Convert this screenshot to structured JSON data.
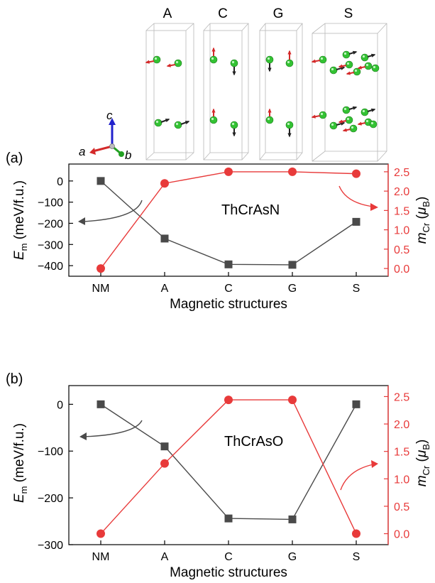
{
  "header": {
    "structure_labels": [
      "A",
      "C",
      "G",
      "S"
    ],
    "axis_labels": {
      "a": "a",
      "b": "b",
      "c": "c"
    }
  },
  "colors": {
    "energy_series": "#4a4a4a",
    "moment_series": "#e83a3a",
    "atom": "#33c233",
    "spin_up": "#d42a2a",
    "spin_dark": "#222222",
    "axis_a": "#d42a2a",
    "axis_b": "#22a022",
    "axis_c": "#2222cc"
  },
  "chart_data": [
    {
      "type": "line",
      "panel_label": "(a)",
      "annotation": "ThCrAsN",
      "categories": [
        "NM",
        "A",
        "C",
        "G",
        "S"
      ],
      "xlabel": "Magnetic structures",
      "ylabel_left": {
        "main": "E",
        "sub": "m",
        "rest": " (meV/f.u.)"
      },
      "ylabel_right": {
        "main": "m",
        "sub": "Cr",
        "rest": " (",
        "mu": "μ",
        "mu_sub": "B",
        "close": ")"
      },
      "ylim_left": [
        -450,
        80
      ],
      "yticks_left": [
        0,
        -100,
        -200,
        -300,
        -400
      ],
      "ytick_labels_left": [
        "0",
        "−100",
        "−200",
        "−300",
        "−400"
      ],
      "ylim_right": [
        -0.2,
        2.7
      ],
      "yticks_right": [
        0.0,
        0.5,
        1.0,
        1.5,
        2.0,
        2.5
      ],
      "ytick_labels_right": [
        "0.0",
        "0.5",
        "1.0",
        "1.5",
        "2.0",
        "2.5"
      ],
      "series": [
        {
          "axis": "left",
          "marker": "square",
          "values": [
            0,
            -272,
            -394,
            -396,
            -193
          ]
        },
        {
          "axis": "right",
          "marker": "circle",
          "values": [
            0.0,
            2.2,
            2.5,
            2.5,
            2.45
          ]
        }
      ]
    },
    {
      "type": "line",
      "panel_label": "(b)",
      "annotation": "ThCrAsO",
      "categories": [
        "NM",
        "A",
        "C",
        "G",
        "S"
      ],
      "xlabel": "Magnetic structures",
      "ylabel_left": {
        "main": "E",
        "sub": "m",
        "rest": " (meV/f.u.)"
      },
      "ylabel_right": {
        "main": "m",
        "sub": "Cr",
        "rest": " (",
        "mu": "μ",
        "mu_sub": "B",
        "close": ")"
      },
      "ylim_left": [
        -300,
        40
      ],
      "yticks_left": [
        0,
        -100,
        -200,
        -300
      ],
      "ytick_labels_left": [
        "0",
        "−100",
        "−200",
        "−300"
      ],
      "ylim_right": [
        -0.2,
        2.7
      ],
      "yticks_right": [
        0.0,
        0.5,
        1.0,
        1.5,
        2.0,
        2.5
      ],
      "ytick_labels_right": [
        "0.0",
        "0.5",
        "1.0",
        "1.5",
        "2.0",
        "2.5"
      ],
      "series": [
        {
          "axis": "left",
          "marker": "square",
          "values": [
            0,
            -90,
            -244,
            -246,
            0
          ]
        },
        {
          "axis": "right",
          "marker": "circle",
          "values": [
            0.0,
            1.28,
            2.44,
            2.44,
            0.0
          ]
        }
      ]
    }
  ]
}
